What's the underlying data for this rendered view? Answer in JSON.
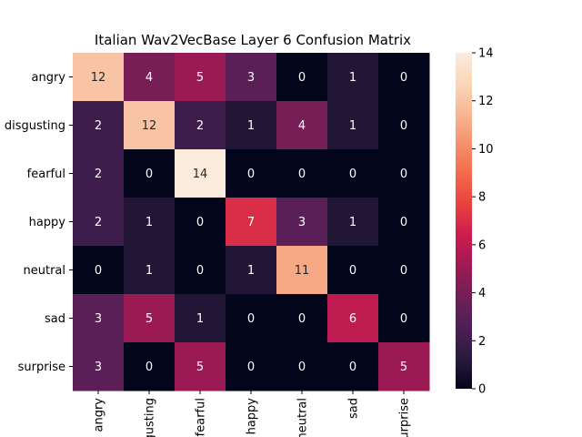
{
  "chart_data": {
    "type": "heatmap",
    "title": "Italian Wav2VecBase Layer 6 Confusion Matrix",
    "row_labels": [
      "angry",
      "disgusting",
      "fearful",
      "happy",
      "neutral",
      "sad",
      "surprise"
    ],
    "col_labels": [
      "angry",
      "disgusting",
      "fearful",
      "happy",
      "neutral",
      "sad",
      "surprise"
    ],
    "values": [
      [
        12,
        4,
        5,
        3,
        0,
        1,
        0
      ],
      [
        2,
        12,
        2,
        1,
        4,
        1,
        0
      ],
      [
        2,
        0,
        14,
        0,
        0,
        0,
        0
      ],
      [
        2,
        1,
        0,
        7,
        3,
        1,
        0
      ],
      [
        0,
        1,
        0,
        1,
        11,
        0,
        0
      ],
      [
        3,
        5,
        1,
        0,
        0,
        6,
        0
      ],
      [
        3,
        0,
        5,
        0,
        0,
        0,
        5
      ]
    ],
    "colorbar": {
      "min": 0,
      "max": 14,
      "ticks": [
        0,
        2,
        4,
        6,
        8,
        10,
        12,
        14
      ]
    },
    "colormap": "rocket",
    "colormap_stops": [
      "#03051a",
      "#2a1a3e",
      "#4d1f57",
      "#701f57",
      "#9e1a53",
      "#cb1b4f",
      "#e83f3f",
      "#f3694a",
      "#f6906b",
      "#f8b693",
      "#fad7b9",
      "#faebdd"
    ]
  }
}
